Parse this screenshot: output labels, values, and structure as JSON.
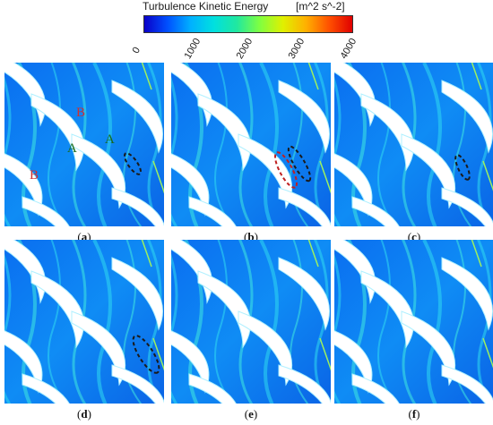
{
  "colorbar": {
    "title": "Turbulence Kinetic Energy",
    "unit": "[m^2 s^-2]",
    "min": 0,
    "max": 4000,
    "ticks": [
      "0",
      "1000",
      "2000",
      "3000",
      "4000"
    ],
    "tick_values": [
      0,
      1000,
      2000,
      3000,
      4000
    ],
    "colors": [
      "#0a00c8",
      "#0050ff",
      "#00b0ff",
      "#00e0e0",
      "#20e8a0",
      "#80ff40",
      "#e0f000",
      "#ffb000",
      "#ff5000",
      "#e00000"
    ]
  },
  "panels": [
    {
      "id": "a",
      "label": "a",
      "row": 0,
      "col": 0,
      "annotations": [
        {
          "text": "B",
          "color": "#d03030"
        },
        {
          "text": "A",
          "color": "#1a6a1a"
        },
        {
          "text": "A",
          "color": "#1a6a1a"
        },
        {
          "text": "B",
          "color": "#d03030"
        }
      ],
      "ellipses": [
        {
          "color": "#1a1a1a"
        }
      ]
    },
    {
      "id": "b",
      "label": "b",
      "row": 0,
      "col": 1,
      "annotations": [],
      "ellipses": [
        {
          "color": "#1a1a1a"
        },
        {
          "color": "#c02020"
        }
      ]
    },
    {
      "id": "c",
      "label": "c",
      "row": 0,
      "col": 2,
      "annotations": [],
      "ellipses": [
        {
          "color": "#1a1a1a"
        }
      ]
    },
    {
      "id": "d",
      "label": "d",
      "row": 1,
      "col": 0,
      "annotations": [],
      "ellipses": [
        {
          "color": "#1a1a1a"
        }
      ]
    },
    {
      "id": "e",
      "label": "e",
      "row": 1,
      "col": 1,
      "annotations": [],
      "ellipses": []
    },
    {
      "id": "f",
      "label": "f",
      "row": 1,
      "col": 2,
      "annotations": [],
      "ellipses": []
    }
  ]
}
